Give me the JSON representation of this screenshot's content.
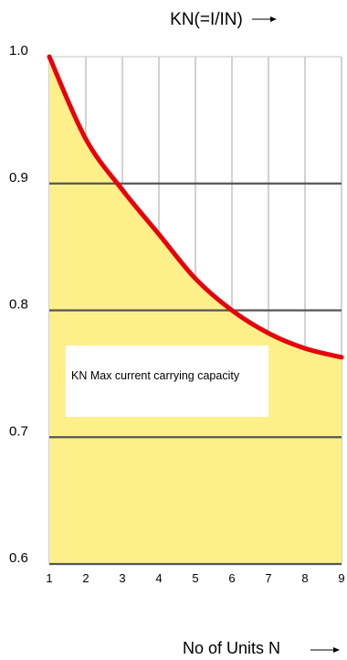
{
  "chart_data": {
    "type": "area",
    "title": "KN(=I/IN)",
    "xlabel": "No of Units N",
    "ylabel": "",
    "xlim": [
      1,
      9
    ],
    "ylim": [
      0.6,
      1.0
    ],
    "x_ticks": [
      "1",
      "2",
      "3",
      "4",
      "5",
      "6",
      "7",
      "8",
      "9"
    ],
    "y_ticks": [
      "1.0",
      "0.9",
      "0.8",
      "0.7",
      "0.6"
    ],
    "grid": true,
    "series": [
      {
        "x": [
          1,
          2,
          3,
          4,
          5,
          6,
          7,
          8,
          9
        ],
        "values": [
          1.0,
          0.935,
          0.895,
          0.86,
          0.825,
          0.8,
          0.782,
          0.77,
          0.763
        ]
      }
    ],
    "annotation": "KN Max current carrying capacity",
    "colors": {
      "fill": "#fdf08a",
      "line": "#e8000b",
      "grid": "#555555"
    }
  }
}
